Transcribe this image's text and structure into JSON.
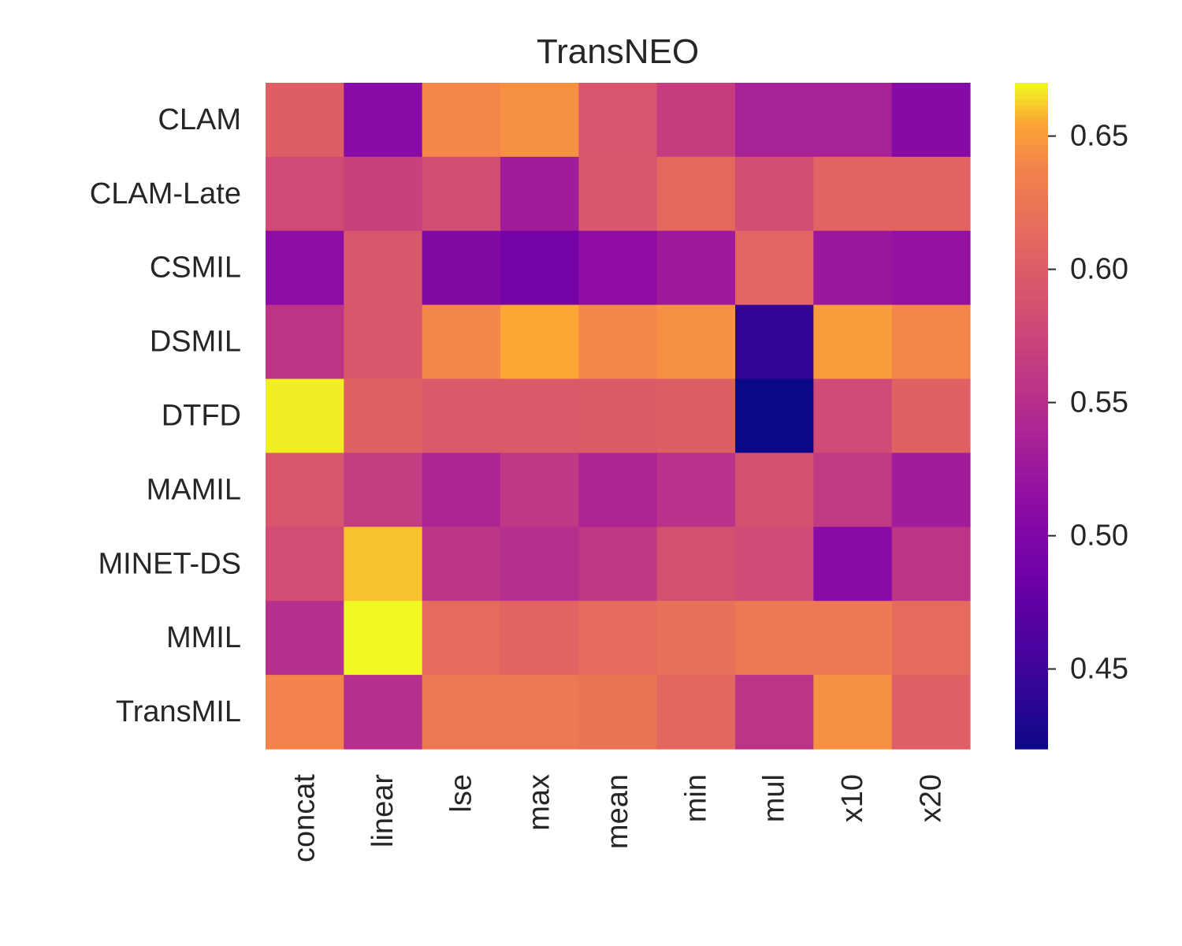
{
  "chart_data": {
    "type": "heatmap",
    "title": "TransNEO",
    "rows": [
      "CLAM",
      "CLAM-Late",
      "CSMIL",
      "DSMIL",
      "DTFD",
      "MAMIL",
      "MINET-DS",
      "MMIL",
      "TransMIL"
    ],
    "columns": [
      "concat",
      "linear",
      "lse",
      "max",
      "mean",
      "min",
      "mul",
      "x10",
      "x20"
    ],
    "values": [
      [
        0.602,
        0.508,
        0.64,
        0.645,
        0.592,
        0.567,
        0.536,
        0.536,
        0.506
      ],
      [
        0.58,
        0.57,
        0.585,
        0.53,
        0.593,
        0.612,
        0.585,
        0.607,
        0.607
      ],
      [
        0.512,
        0.593,
        0.504,
        0.49,
        0.514,
        0.528,
        0.609,
        0.525,
        0.518
      ],
      [
        0.556,
        0.594,
        0.64,
        0.655,
        0.64,
        0.645,
        0.443,
        0.65,
        0.64
      ],
      [
        0.668,
        0.604,
        0.597,
        0.597,
        0.599,
        0.602,
        0.42,
        0.58,
        0.604
      ],
      [
        0.593,
        0.565,
        0.54,
        0.56,
        0.54,
        0.553,
        0.587,
        0.562,
        0.53
      ],
      [
        0.583,
        0.66,
        0.558,
        0.55,
        0.56,
        0.587,
        0.58,
        0.509,
        0.556
      ],
      [
        0.55,
        0.67,
        0.614,
        0.607,
        0.614,
        0.62,
        0.628,
        0.628,
        0.614
      ],
      [
        0.638,
        0.55,
        0.628,
        0.628,
        0.624,
        0.61,
        0.556,
        0.645,
        0.603
      ]
    ],
    "colormap": "plasma",
    "colorbar": {
      "range": [
        0.42,
        0.67
      ],
      "ticks": [
        0.45,
        0.5,
        0.55,
        0.6,
        0.65
      ],
      "tick_labels": [
        "0.45",
        "0.50",
        "0.55",
        "0.60",
        "0.65"
      ]
    },
    "x_tick_rotation": "vertical",
    "grid": false
  }
}
